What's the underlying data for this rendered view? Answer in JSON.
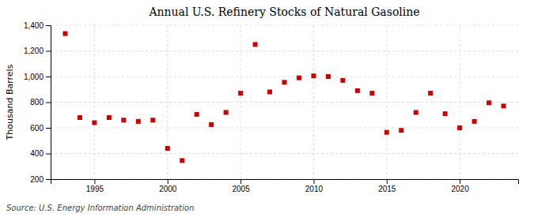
{
  "chart_data": {
    "type": "scatter",
    "title": "Annual U.S. Refinery Stocks of Natural Gasoline",
    "y_label": "Thousand Barrels",
    "source": "Source: U.S. Energy Information Administration",
    "x": [
      1993,
      1994,
      1995,
      1996,
      1997,
      1998,
      1999,
      2000,
      2001,
      2002,
      2003,
      2004,
      2005,
      2006,
      2007,
      2008,
      2009,
      2010,
      2011,
      2012,
      2013,
      2014,
      2015,
      2016,
      2017,
      2018,
      2019,
      2020,
      2021,
      2022,
      2023
    ],
    "values": [
      1335,
      680,
      640,
      680,
      660,
      650,
      660,
      440,
      345,
      705,
      625,
      720,
      870,
      1250,
      880,
      955,
      990,
      1005,
      1000,
      970,
      890,
      870,
      565,
      580,
      720,
      870,
      710,
      600,
      650,
      795,
      770
    ],
    "color": "#cc0000",
    "marker": "square",
    "xlim": [
      1992,
      2024
    ],
    "xticks": [
      1995,
      2000,
      2005,
      2010,
      2015,
      2020
    ],
    "ylim": [
      200,
      1400
    ],
    "yticks": [
      200,
      400,
      600,
      800,
      {
        "value": 1000,
        "label": "1,000"
      },
      {
        "value": 1200,
        "label": "1,200"
      },
      {
        "value": 1400,
        "label": "1,400"
      }
    ],
    "grid": true
  }
}
